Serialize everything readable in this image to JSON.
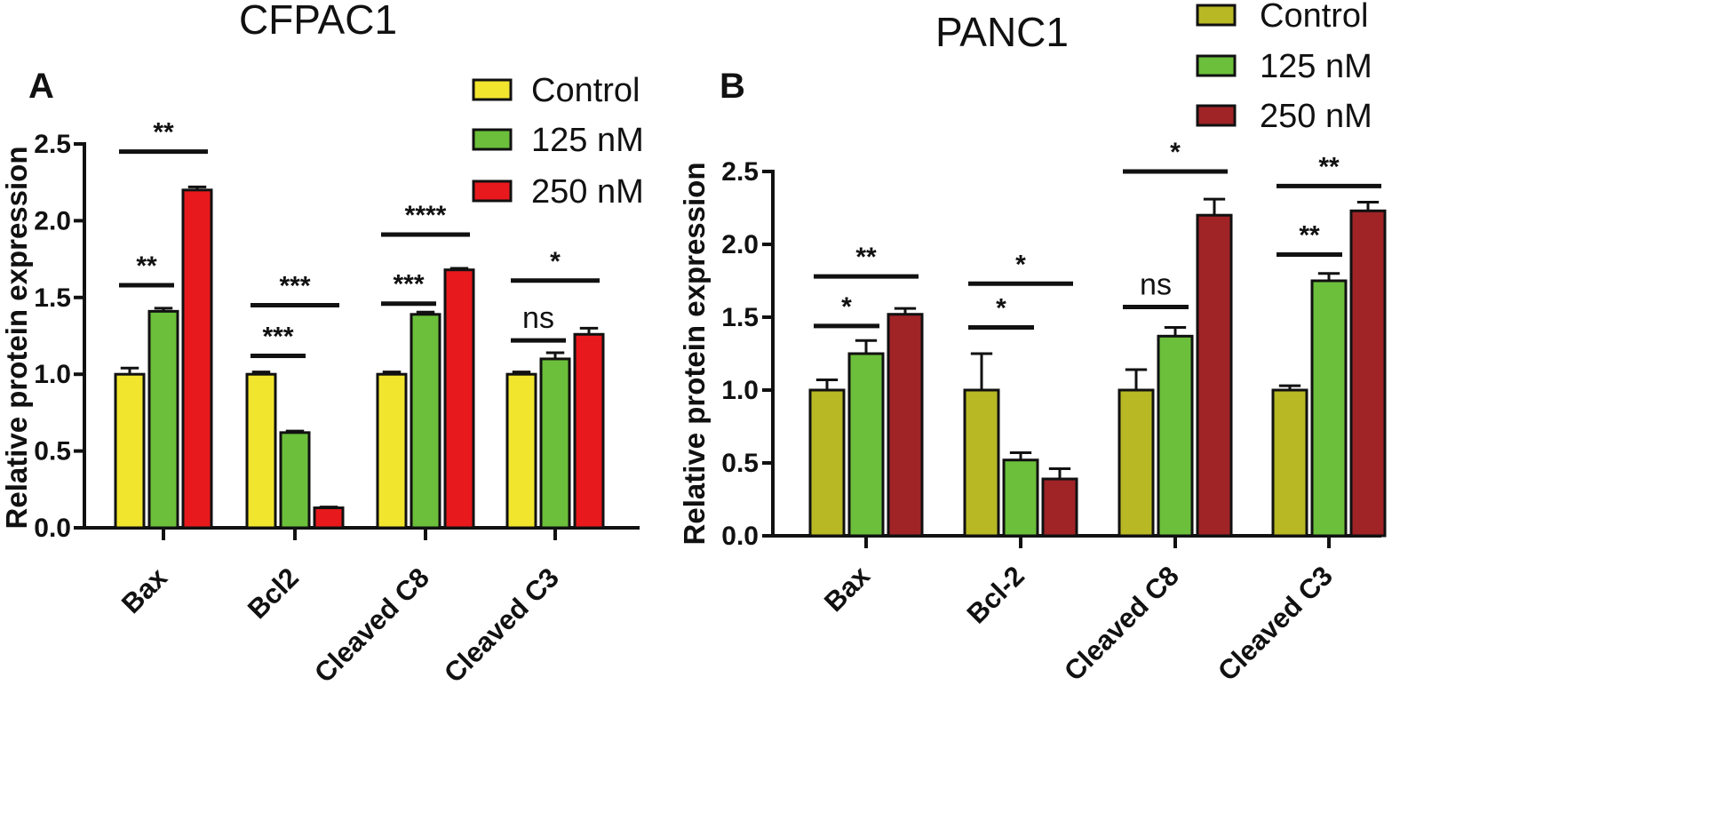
{
  "chart_data": [
    {
      "type": "bar",
      "panel_letter": "A",
      "title": "CFPAC1",
      "ylabel": "Relative protein expression",
      "ylim": [
        0,
        2.5
      ],
      "yticks": [
        "0.0",
        "0.5",
        "1.0",
        "1.5",
        "2.0",
        "2.5"
      ],
      "categories": [
        "Bax",
        "Bcl2",
        "Cleaved C8",
        "Cleaved C3"
      ],
      "series": [
        {
          "name": "Control",
          "color": "#f2e52e",
          "values": [
            1.0,
            1.0,
            1.0,
            1.0
          ],
          "errors": [
            0.04,
            0.015,
            0.015,
            0.015
          ]
        },
        {
          "name": "125 nM",
          "color": "#6bbf3a",
          "values": [
            1.41,
            0.62,
            1.39,
            1.1
          ],
          "errors": [
            0.02,
            0.01,
            0.015,
            0.04
          ]
        },
        {
          "name": "250 nM",
          "color": "#e8191c",
          "values": [
            2.2,
            0.13,
            1.68,
            1.26
          ],
          "errors": [
            0.02,
            0.005,
            0.01,
            0.04
          ]
        }
      ],
      "significance": [
        {
          "category": 0,
          "from": 0,
          "to": 1,
          "label": "**",
          "y": 1.58
        },
        {
          "category": 0,
          "from": 0,
          "to": 2,
          "label": "**",
          "y": 2.45
        },
        {
          "category": 1,
          "from": 0,
          "to": 1,
          "label": "***",
          "y": 1.12
        },
        {
          "category": 1,
          "from": 0,
          "to": 2,
          "label": "***",
          "y": 1.45
        },
        {
          "category": 2,
          "from": 0,
          "to": 1,
          "label": "***",
          "y": 1.46
        },
        {
          "category": 2,
          "from": 0,
          "to": 2,
          "label": "****",
          "y": 1.91
        },
        {
          "category": 3,
          "from": 0,
          "to": 1,
          "label": "ns",
          "y": 1.22
        },
        {
          "category": 3,
          "from": 0,
          "to": 2,
          "label": "*",
          "y": 1.61
        }
      ],
      "legend_position": "top-right"
    },
    {
      "type": "bar",
      "panel_letter": "B",
      "title": "PANC1",
      "ylabel": "Relative protein expression",
      "ylim": [
        0,
        2.5
      ],
      "yticks": [
        "0.0",
        "0.5",
        "1.0",
        "1.5",
        "2.0",
        "2.5"
      ],
      "categories": [
        "Bax",
        "Bcl-2",
        "Cleaved C8",
        "Cleaved C3"
      ],
      "series": [
        {
          "name": "Control",
          "color": "#b7b824",
          "values": [
            1.0,
            1.0,
            1.0,
            1.0
          ],
          "errors": [
            0.07,
            0.25,
            0.14,
            0.03
          ]
        },
        {
          "name": "125 nM",
          "color": "#6bbf3a",
          "values": [
            1.25,
            0.52,
            1.37,
            1.75
          ],
          "errors": [
            0.09,
            0.05,
            0.06,
            0.05
          ]
        },
        {
          "name": "250 nM",
          "color": "#a02326",
          "values": [
            1.52,
            0.39,
            2.2,
            2.23
          ],
          "errors": [
            0.04,
            0.07,
            0.11,
            0.06
          ]
        }
      ],
      "significance": [
        {
          "category": 0,
          "from": 0,
          "to": 1,
          "label": "*",
          "y": 1.44
        },
        {
          "category": 0,
          "from": 0,
          "to": 2,
          "label": "**",
          "y": 1.78
        },
        {
          "category": 1,
          "from": 0,
          "to": 1,
          "label": "*",
          "y": 1.43
        },
        {
          "category": 1,
          "from": 0,
          "to": 2,
          "label": "*",
          "y": 1.73
        },
        {
          "category": 2,
          "from": 0,
          "to": 1,
          "label": "ns",
          "y": 1.57
        },
        {
          "category": 2,
          "from": 0,
          "to": 2,
          "label": "*",
          "y": 2.5
        },
        {
          "category": 3,
          "from": 0,
          "to": 1,
          "label": "**",
          "y": 1.93
        },
        {
          "category": 3,
          "from": 0,
          "to": 2,
          "label": "**",
          "y": 2.4
        }
      ],
      "legend_position": "top-right"
    }
  ]
}
